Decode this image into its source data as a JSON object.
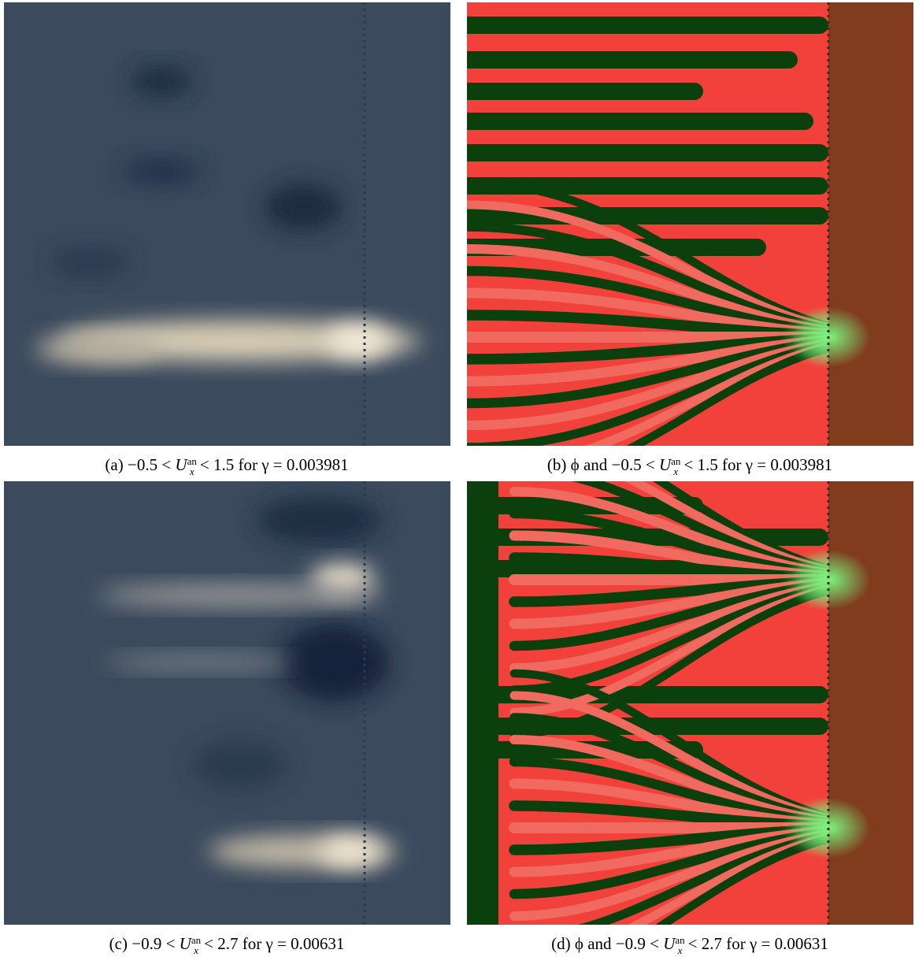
{
  "figures": [
    {
      "label": "(a)",
      "before": "−0.5 <",
      "symbol": "U",
      "sup": "an",
      "sub": "x",
      "after": "< 1.5 for γ = 0.003981"
    },
    {
      "label": "(b)",
      "before": "ϕ and −0.5 <",
      "symbol": "U",
      "sup": "an",
      "sub": "x",
      "after": "< 1.5 for γ = 0.003981"
    },
    {
      "label": "(c)",
      "before": "−0.9 <",
      "symbol": "U",
      "sup": "an",
      "sub": "x",
      "after": "< 2.7 for γ = 0.00631"
    },
    {
      "label": "(d)",
      "before": "ϕ and −0.9 <",
      "symbol": "U",
      "sup": "an",
      "sub": "x",
      "after": "< 2.7 for γ = 0.00631"
    }
  ]
}
